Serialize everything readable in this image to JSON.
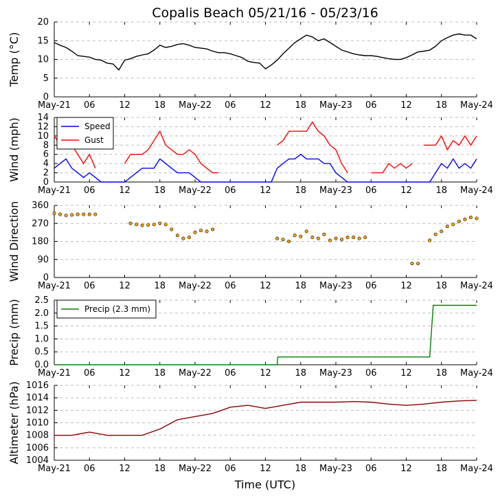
{
  "title": "Copalis Beach 05/21/16 - 05/23/16",
  "xlabel": "Time (UTC)",
  "x_ticks": [
    "May-21",
    "06",
    "12",
    "18",
    "May-22",
    "06",
    "12",
    "18",
    "May-23",
    "06",
    "12",
    "18",
    "May-24"
  ],
  "x_range_hours": [
    0,
    72
  ],
  "colors": {
    "temp": "#000000",
    "speed": "#0000ff",
    "gust": "#ff0000",
    "direction": "#ffa500",
    "precip": "#008000",
    "altimeter": "#8b0000",
    "grid": "#bbbbbb"
  },
  "chart_data": [
    {
      "type": "line",
      "title": "Temperature",
      "ylabel": "Temp (°C)",
      "ylim": [
        0,
        20
      ],
      "yticks": [
        "0",
        "5",
        "10",
        "15",
        "20"
      ],
      "series": [
        {
          "name": "Temp",
          "x": [
            0,
            1,
            2,
            3,
            4,
            5,
            6,
            7,
            8,
            9,
            10,
            11,
            12,
            13,
            14,
            15,
            16,
            17,
            18,
            19,
            20,
            21,
            22,
            23,
            24,
            25,
            26,
            27,
            28,
            29,
            30,
            31,
            32,
            33,
            34,
            35,
            36,
            37,
            38,
            39,
            40,
            41,
            42,
            43,
            44,
            45,
            46,
            47,
            48,
            49,
            50,
            51,
            52,
            53,
            54,
            55,
            56,
            57,
            58,
            59,
            60,
            61,
            62,
            63,
            64,
            65,
            66,
            67,
            68,
            69,
            70,
            71,
            72
          ],
          "values": [
            14.5,
            13.8,
            13.2,
            12.2,
            11.0,
            10.8,
            10.6,
            10.0,
            9.8,
            9.0,
            8.8,
            7.2,
            9.8,
            10.2,
            10.8,
            11.2,
            11.5,
            12.5,
            13.8,
            13.2,
            13.5,
            14.0,
            14.2,
            13.8,
            13.2,
            13.0,
            12.8,
            12.2,
            11.8,
            11.8,
            11.5,
            11.0,
            10.5,
            9.5,
            9.2,
            9.0,
            7.5,
            8.5,
            9.8,
            11.5,
            13.0,
            14.5,
            15.5,
            16.5,
            16.0,
            15.0,
            15.5,
            14.5,
            13.5,
            12.5,
            12.0,
            11.5,
            11.2,
            11.0,
            11.0,
            10.8,
            10.5,
            10.2,
            10.0,
            10.0,
            10.5,
            11.2,
            12.0,
            12.2,
            12.5,
            13.5,
            15.0,
            15.8,
            16.5,
            16.8,
            16.5,
            16.5,
            15.5
          ]
        }
      ]
    },
    {
      "type": "line",
      "title": "Wind",
      "ylabel": "Wind (mph)",
      "ylim": [
        0,
        14
      ],
      "yticks": [
        "0",
        "2",
        "4",
        "6",
        "8",
        "10",
        "12",
        "14"
      ],
      "legend": "top-left",
      "series": [
        {
          "name": "Speed",
          "x": [
            0,
            1,
            2,
            3,
            4,
            5,
            6,
            7,
            8,
            9,
            10,
            11,
            12,
            13,
            14,
            15,
            16,
            17,
            18,
            19,
            20,
            21,
            22,
            23,
            24,
            25,
            26,
            27,
            28,
            29,
            30,
            31,
            32,
            33,
            34,
            35,
            36,
            37,
            38,
            39,
            40,
            41,
            42,
            43,
            44,
            45,
            46,
            47,
            48,
            49,
            50,
            51,
            52,
            53,
            54,
            55,
            56,
            57,
            58,
            59,
            60,
            61,
            62,
            63,
            64,
            65,
            66,
            67,
            68,
            69,
            70,
            71,
            72
          ],
          "values": [
            3,
            4,
            5,
            3,
            2,
            1,
            2,
            1,
            0,
            0,
            0,
            0,
            0,
            1,
            2,
            3,
            3,
            3,
            5,
            4,
            3,
            2,
            2,
            2,
            1,
            0,
            0,
            0,
            0,
            0,
            0,
            0,
            0,
            0,
            0,
            0,
            0,
            0,
            3,
            4,
            5,
            5,
            6,
            5,
            5,
            5,
            4,
            4,
            2,
            1,
            0,
            0,
            0,
            0,
            0,
            0,
            0,
            0,
            0,
            0,
            0,
            0,
            0,
            0,
            0,
            2,
            4,
            3,
            5,
            3,
            4,
            3,
            5
          ]
        },
        {
          "name": "Gust",
          "x": [
            0,
            1,
            2,
            3,
            4,
            5,
            6,
            7,
            8,
            9,
            10,
            11,
            12,
            13,
            14,
            15,
            16,
            17,
            18,
            19,
            20,
            21,
            22,
            23,
            24,
            25,
            26,
            27,
            28,
            29,
            30,
            31,
            32,
            33,
            34,
            35,
            36,
            37,
            38,
            39,
            40,
            41,
            42,
            43,
            44,
            45,
            46,
            47,
            48,
            49,
            50,
            51,
            52,
            53,
            54,
            55,
            56,
            57,
            58,
            59,
            60,
            61,
            62,
            63,
            64,
            65,
            66,
            67,
            68,
            69,
            70,
            71,
            72
          ],
          "values": [
            10,
            8,
            10,
            8,
            6,
            4,
            6,
            3,
            null,
            null,
            null,
            null,
            4,
            6,
            6,
            6,
            7,
            9,
            11,
            8,
            7,
            6,
            6,
            7,
            6,
            4,
            3,
            2,
            2,
            null,
            null,
            null,
            null,
            null,
            null,
            null,
            null,
            null,
            8,
            9,
            11,
            11,
            11,
            11,
            13,
            11,
            10,
            8,
            7,
            4,
            2,
            null,
            null,
            null,
            2,
            2,
            2,
            4,
            3,
            4,
            3,
            4,
            null,
            8,
            8,
            8,
            10,
            7,
            9,
            8,
            10,
            8,
            10
          ]
        }
      ]
    },
    {
      "type": "scatter",
      "title": "Wind Direction",
      "ylabel": "Wind Direction",
      "ylim": [
        0,
        360
      ],
      "yticks": [
        "0",
        "90",
        "180",
        "270",
        "360"
      ],
      "series": [
        {
          "name": "Direction",
          "x": [
            0,
            1,
            2,
            3,
            4,
            5,
            6,
            7,
            13,
            14,
            15,
            16,
            17,
            18,
            19,
            20,
            21,
            22,
            23,
            24,
            25,
            26,
            27,
            38,
            39,
            40,
            41,
            42,
            43,
            44,
            45,
            46,
            47,
            48,
            49,
            50,
            51,
            52,
            53,
            61,
            62,
            64,
            65,
            66,
            67,
            68,
            69,
            70,
            71,
            72
          ],
          "values": [
            320,
            315,
            310,
            312,
            315,
            315,
            315,
            315,
            270,
            265,
            260,
            262,
            265,
            270,
            265,
            240,
            210,
            195,
            200,
            225,
            235,
            230,
            240,
            195,
            190,
            180,
            210,
            205,
            230,
            200,
            195,
            215,
            185,
            195,
            190,
            200,
            200,
            195,
            200,
            70,
            70,
            185,
            215,
            230,
            255,
            265,
            280,
            290,
            300,
            295
          ]
        }
      ]
    },
    {
      "type": "line",
      "title": "Precipitation",
      "ylabel": "Precip (mm)",
      "ylim": [
        0,
        2.5
      ],
      "yticks": [
        "0.0",
        "0.5",
        "1.0",
        "1.5",
        "2.0",
        "2.5"
      ],
      "legend": "top-left",
      "series": [
        {
          "name": "Precip (2.3 mm)",
          "x": [
            0,
            38.0,
            38.1,
            64.0,
            64.3,
            64.6,
            72
          ],
          "values": [
            0.0,
            0.0,
            0.3,
            0.3,
            1.3,
            2.3,
            2.3
          ]
        }
      ]
    },
    {
      "type": "line",
      "title": "Altimeter",
      "ylabel": "Altimeter (hPa)",
      "ylim": [
        1004,
        1016
      ],
      "yticks": [
        "1004",
        "1006",
        "1008",
        "1010",
        "1012",
        "1014",
        "1016"
      ],
      "series": [
        {
          "name": "Altimeter",
          "x": [
            0,
            3,
            6,
            9,
            12,
            15,
            18,
            21,
            24,
            27,
            30,
            33,
            36,
            39,
            42,
            45,
            48,
            51,
            54,
            57,
            60,
            63,
            66,
            69,
            72
          ],
          "values": [
            1008.0,
            1008.0,
            1008.5,
            1008.0,
            1008.0,
            1008.0,
            1009.0,
            1010.5,
            1011.0,
            1011.5,
            1012.5,
            1012.8,
            1012.3,
            1012.8,
            1013.3,
            1013.3,
            1013.3,
            1013.4,
            1013.3,
            1013.0,
            1012.8,
            1013.0,
            1013.3,
            1013.5,
            1013.6
          ]
        }
      ]
    }
  ]
}
